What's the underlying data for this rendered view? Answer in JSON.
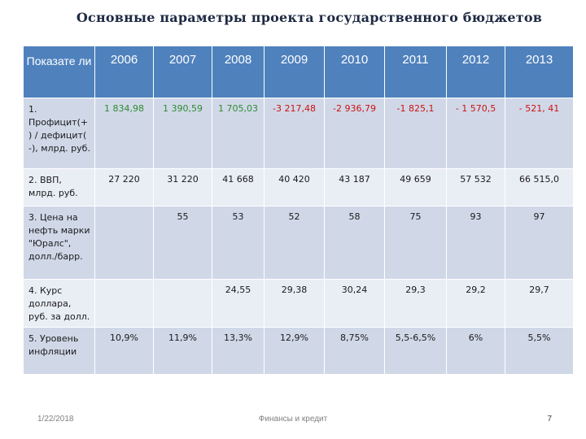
{
  "title": "Основные параметры проекта государственного бюджетов",
  "table": {
    "header": [
      "Показате ли",
      "2006",
      "2007",
      "2008",
      "2009",
      "2010",
      "2011",
      "2012",
      "2013"
    ],
    "rows": [
      {
        "label": "1. Профицит(+ ) / дефицит( -), млрд. руб.",
        "cells": [
          "1 834,98",
          "1 390,59",
          "1 705,03",
          "-3 217,48",
          "-2 936,79",
          "-1 825,1",
          "- 1 570,5",
          "- 521, 41"
        ]
      },
      {
        "label": "2. ВВП, млрд. руб.",
        "cells": [
          "27 220",
          "31 220",
          "41 668",
          "40 420",
          "43 187",
          "49 659",
          "57 532",
          "66 515,0"
        ]
      },
      {
        "label": "3. Цена на нефть марки \"Юралс\", долл./барр.",
        "cells": [
          "",
          "55",
          "53",
          "52",
          "58",
          "75",
          "93",
          "97"
        ]
      },
      {
        "label": "4. Курс доллара, руб. за долл.",
        "cells": [
          "",
          "",
          "24,55",
          "29,38",
          "30,24",
          "29,3",
          "29,2",
          "29,7"
        ]
      },
      {
        "label": "5. Уровень инфляции",
        "cells": [
          "10,9%",
          "11,9%",
          "13,3%",
          "12,9%",
          "8,75%",
          "5,5-6,5%",
          "6%",
          "5,5%"
        ]
      }
    ]
  },
  "footer": {
    "date": "1/22/2018",
    "center": "Финансы и кредит",
    "page": "7"
  },
  "colors": {
    "header_bg": "#4f81bd",
    "row_dark": "#d0d8e8",
    "row_light": "#e9edf4",
    "surplus": "#2e8b2e",
    "deficit": "#cc1111"
  }
}
